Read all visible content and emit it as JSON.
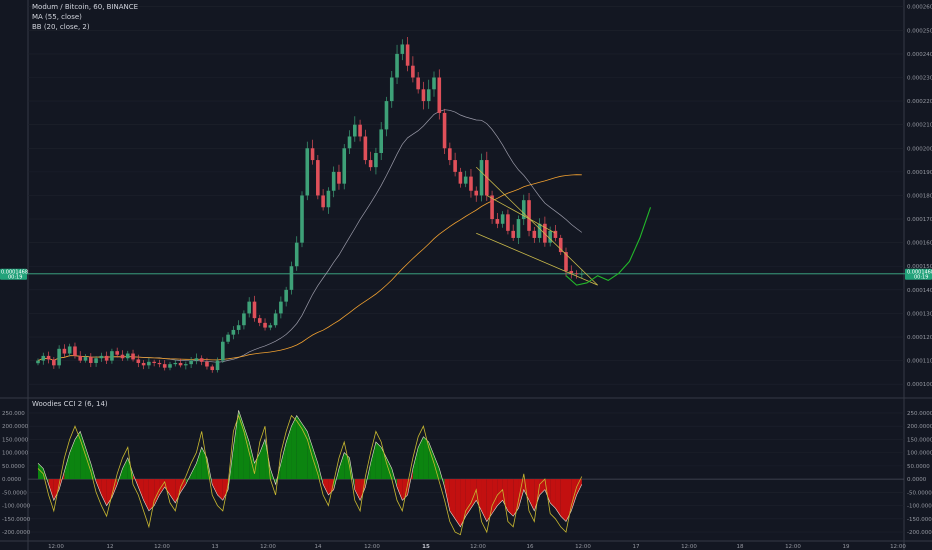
{
  "legend": {
    "symbol": "Modum / Bitcoin, 60, BINANCE",
    "ma": "MA (55, close)",
    "bb": "BB (20, close, 2)"
  },
  "indicator": {
    "label": "Woodies CCI 2 (6, 14)"
  },
  "colors": {
    "up": "#3ea178",
    "down": "#e0505a",
    "ma": "#f0a030",
    "bb": "#9a9aa8",
    "hline": "#3fb28a",
    "pattern": "#c9b94a",
    "projection": "#22b82a",
    "cci_fill_up": "#0c8a10",
    "cci_fill_down": "#cc1010",
    "cci_line": "#e8e0d0",
    "cci_turbo": "#c8b830"
  },
  "price_axis": {
    "min": 9.5e-05,
    "max": 0.000262,
    "ticks": [
      "0.0001000",
      "0.0001100",
      "0.0001200",
      "0.0001300",
      "0.0001400",
      "0.0001500",
      "0.0001600",
      "0.0001700",
      "0.0001800",
      "0.0001900",
      "0.0002000",
      "0.0002100",
      "0.0002200",
      "0.0002300",
      "0.0002400",
      "0.0002500",
      "0.0002600"
    ],
    "last_price": 0.0001468,
    "last_label": "0.0001468",
    "last_label_sub": "00:19"
  },
  "cci_axis": {
    "min": -230,
    "max": 295,
    "ticks": [
      "250.0000",
      "200.0000",
      "150.0000",
      "100.0000",
      "50.0000",
      "0.0000",
      "-50.0000",
      "-100.0000",
      "-150.0000",
      "-200.0000"
    ],
    "left_ticks": [
      "250.000",
      "200.0000",
      "150.0000",
      "100.0000",
      "50.0000",
      "0.0000",
      "-50.0000",
      "-100.0000",
      "-150.0000",
      "-200.0000"
    ]
  },
  "time_axis": {
    "labels": [
      "12:00",
      "12",
      "12:00",
      "13",
      "12:00",
      "14",
      "12:00",
      "15",
      "12:00",
      "16",
      "12:00",
      "17",
      "12:00",
      "18",
      "12:00",
      "19",
      "12:00"
    ],
    "day_labels": [
      "15"
    ]
  },
  "chart_data": {
    "type": "candlestick",
    "title": "Modum / Bitcoin, 60, BINANCE",
    "interval_minutes": 60,
    "bars": 104,
    "series_close": [
      0.00011,
      0.000112,
      0.0001105,
      0.000108,
      0.000115,
      0.000113,
      0.000116,
      0.000112,
      0.00011,
      0.0001115,
      0.000109,
      0.000111,
      0.000112,
      0.00011,
      0.000114,
      0.0001125,
      0.000111,
      0.000113,
      0.0001105,
      0.000109,
      0.000108,
      0.0001095,
      0.000109,
      0.0001085,
      0.000107,
      0.0001085,
      0.000109,
      0.000108,
      0.0001085,
      0.00011,
      0.000111,
      0.0001095,
      0.0001075,
      0.000106,
      0.00011,
      0.000118,
      0.000121,
      0.000123,
      0.000125,
      0.00013,
      0.000135,
      0.000128,
      0.000126,
      0.000124,
      0.000125,
      0.00013,
      0.000135,
      0.00014,
      0.00015,
      0.00016,
      0.00018,
      0.0002,
      0.000195,
      0.00018,
      0.000175,
      0.000182,
      0.00019,
      0.000185,
      0.0002,
      0.000205,
      0.00021,
      0.000205,
      0.000195,
      0.000192,
      0.000198,
      0.000208,
      0.00022,
      0.00023,
      0.00024,
      0.000244,
      0.000235,
      0.00023,
      0.000225,
      0.00022,
      0.000225,
      0.00023,
      0.000215,
      0.0002,
      0.000195,
      0.00019,
      0.000185,
      0.000188,
      0.000182,
      0.00018,
      0.000195,
      0.00018,
      0.00017,
      0.000168,
      0.000172,
      0.000165,
      0.000162,
      0.00017,
      0.000178,
      0.000165,
      0.000162,
      0.000168,
      0.00016,
      0.000165,
      0.000162,
      0.000156,
      0.000148,
      0.000147,
      0.0001468,
      0.0001468
    ],
    "ma_period": 55,
    "bb_period": 20,
    "bb_mult": 2,
    "horizontal_line": 0.0001468,
    "cci_period_fast": 6,
    "cci_period_slow": 14,
    "cci_values": [
      60,
      40,
      -20,
      -80,
      -40,
      30,
      100,
      150,
      180,
      120,
      60,
      -10,
      -60,
      -100,
      -70,
      -20,
      40,
      80,
      20,
      -30,
      -80,
      -120,
      -100,
      -60,
      -30,
      -60,
      -90,
      -50,
      -20,
      20,
      60,
      120,
      80,
      -20,
      -60,
      -80,
      -40,
      120,
      260,
      200,
      140,
      60,
      100,
      150,
      40,
      -20,
      60,
      140,
      200,
      240,
      210,
      180,
      120,
      60,
      -20,
      -60,
      -40,
      40,
      100,
      80,
      -40,
      -80,
      -30,
      60,
      140,
      120,
      80,
      40,
      -30,
      -80,
      -60,
      40,
      120,
      160,
      140,
      90,
      40,
      -30,
      -120,
      -150,
      -180,
      -140,
      -110,
      -80,
      -120,
      -160,
      -130,
      -100,
      -80,
      -120,
      -140,
      -110,
      -40,
      -80,
      -120,
      -60,
      -40,
      -90,
      -110,
      -140,
      -160,
      -120,
      -60,
      -20
    ],
    "cci_turbo": [
      40,
      20,
      -60,
      -120,
      -20,
      80,
      150,
      200,
      150,
      90,
      30,
      -50,
      -100,
      -140,
      -60,
      20,
      80,
      120,
      -20,
      -60,
      -120,
      -180,
      -80,
      -40,
      -10,
      -90,
      -120,
      -30,
      10,
      60,
      100,
      180,
      60,
      -60,
      -100,
      -120,
      -20,
      180,
      240,
      180,
      100,
      20,
      140,
      200,
      0,
      -60,
      100,
      180,
      240,
      220,
      190,
      150,
      80,
      20,
      -60,
      -100,
      -10,
      80,
      140,
      50,
      -80,
      -120,
      10,
      100,
      180,
      140,
      60,
      0,
      -80,
      -120,
      -20,
      80,
      160,
      200,
      120,
      60,
      -10,
      -80,
      -160,
      -200,
      -210,
      -120,
      -90,
      -40,
      -160,
      -200,
      -100,
      -60,
      -40,
      -160,
      -180,
      -80,
      20,
      -120,
      -160,
      -20,
      0,
      -130,
      -150,
      -180,
      -200,
      -100,
      -30,
      10
    ],
    "trendlines": [
      {
        "name": "wedge-upper",
        "from": [
          83,
          0.000192
        ],
        "to": [
          106,
          0.000142
        ]
      },
      {
        "name": "wedge-lower",
        "from": [
          83,
          0.000164
        ],
        "to": [
          106,
          0.000142
        ]
      },
      {
        "name": "resistance",
        "from": [
          85,
          0.00018
        ],
        "to": [
          98,
          0.000164
        ]
      }
    ],
    "projection": [
      [
        100,
        0.000146
      ],
      [
        102,
        0.000142
      ],
      [
        104,
        0.000143
      ],
      [
        106,
        0.000146
      ],
      [
        108,
        0.000144
      ],
      [
        110,
        0.000147
      ],
      [
        112,
        0.000152
      ],
      [
        114,
        0.000162
      ],
      [
        116,
        0.000175
      ]
    ]
  }
}
